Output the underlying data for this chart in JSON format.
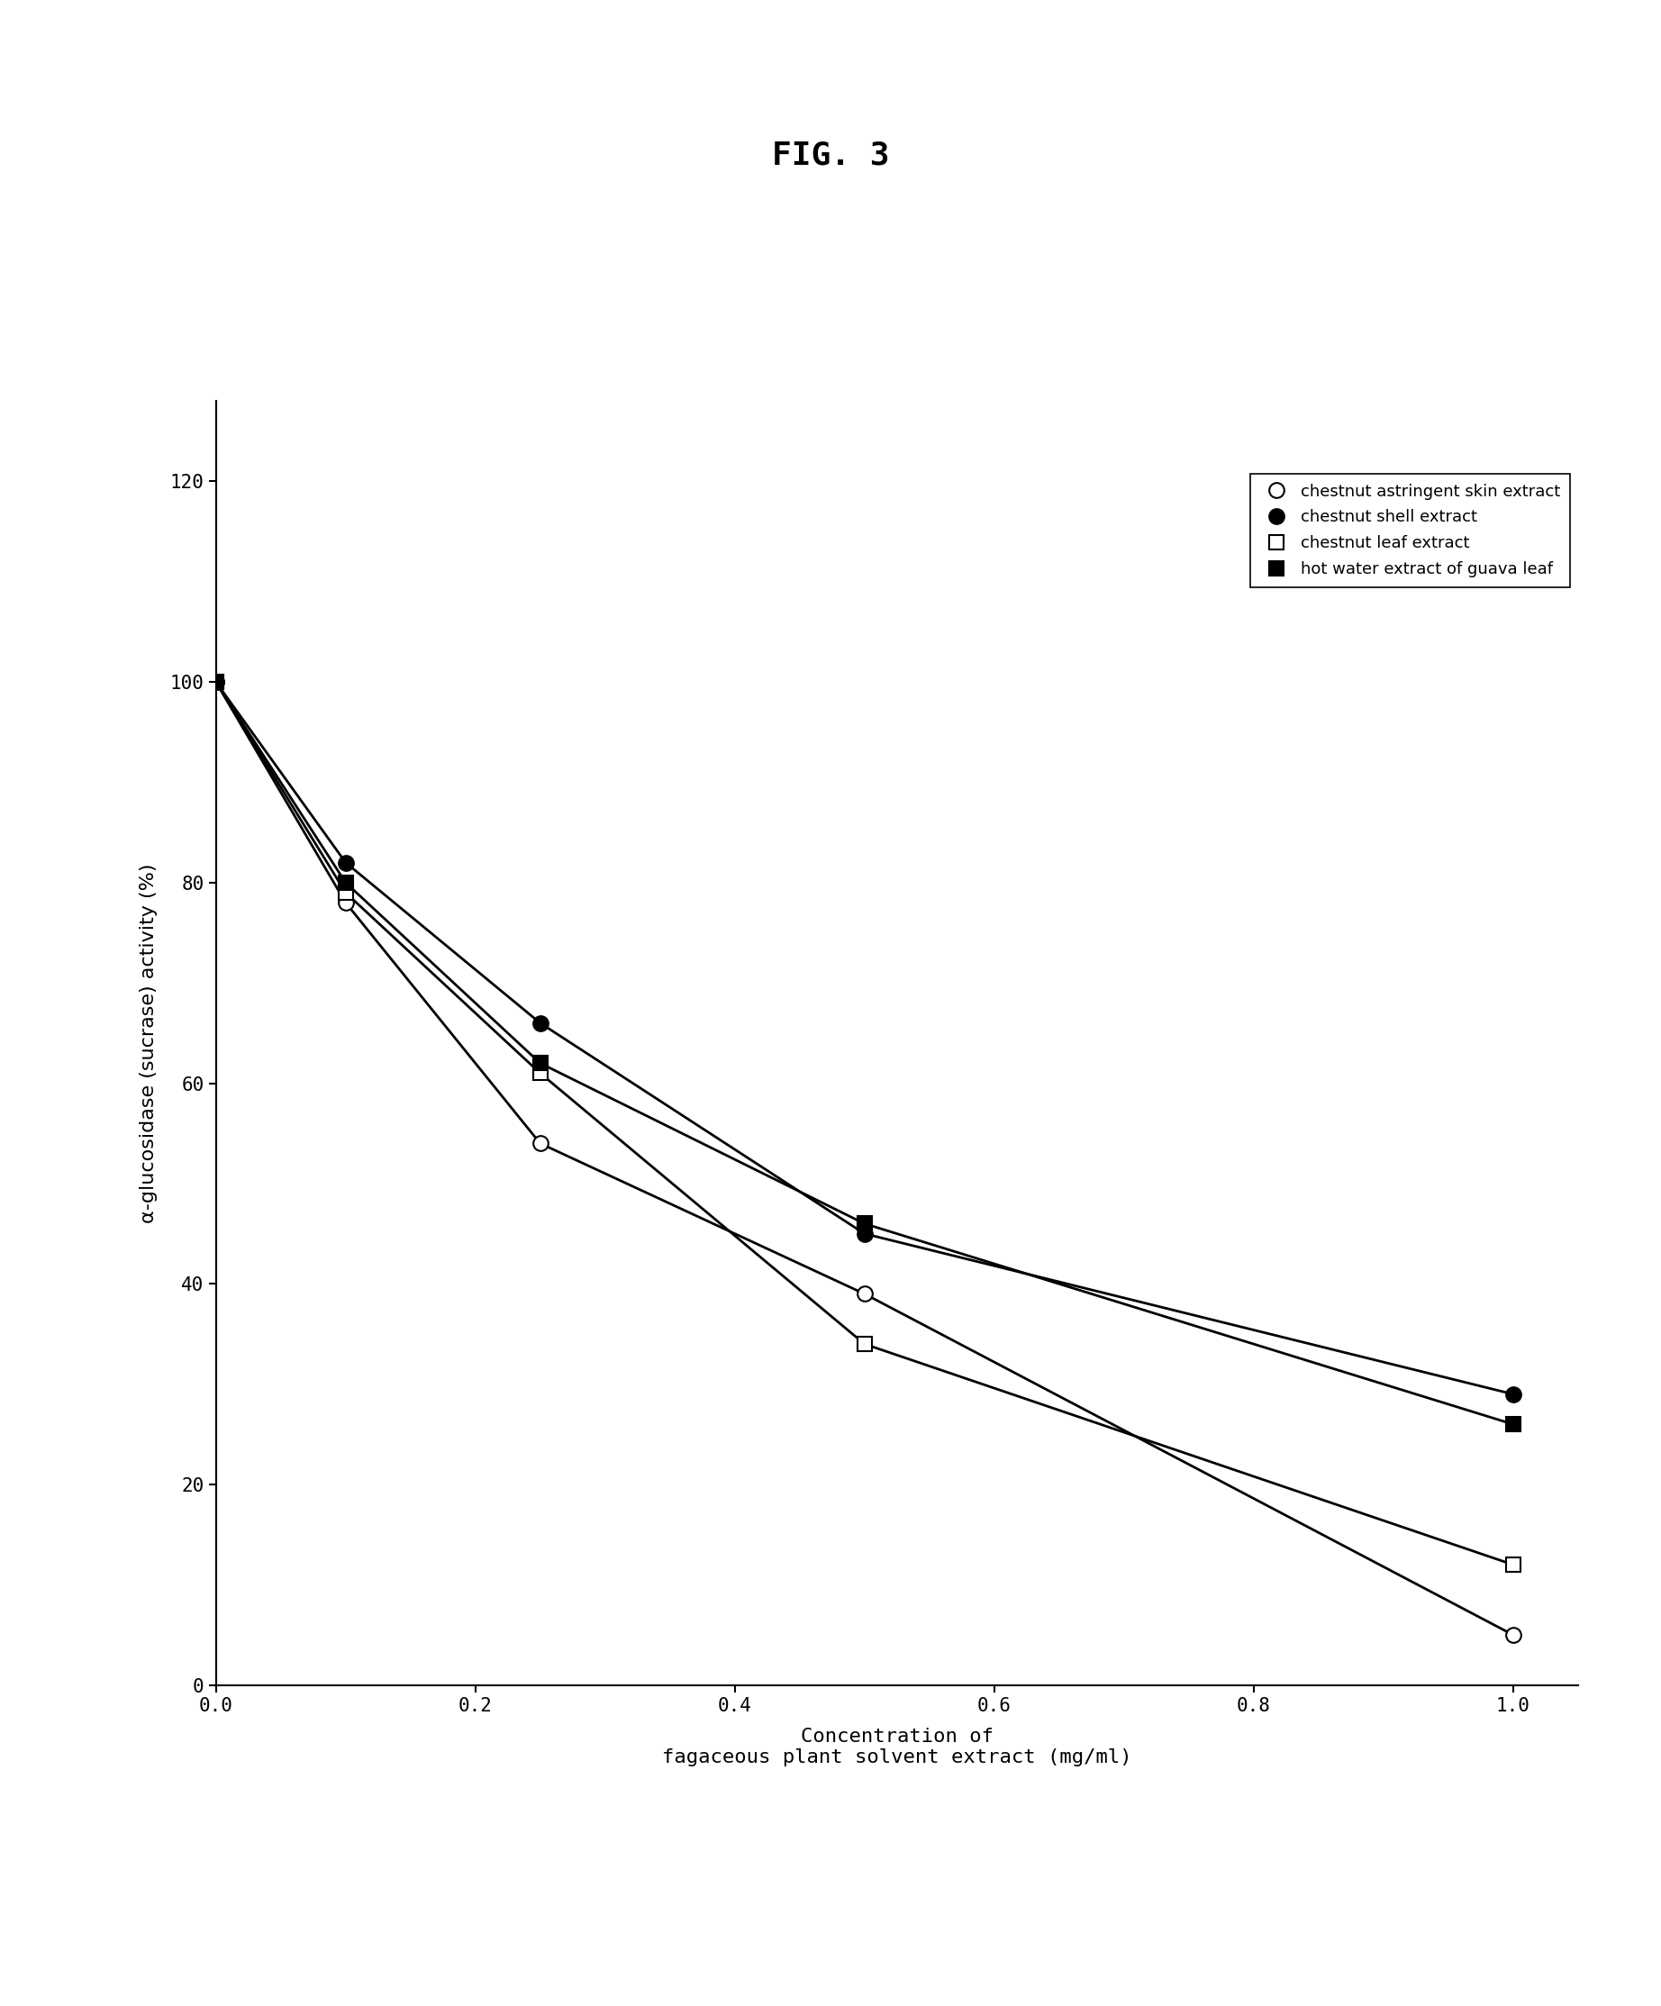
{
  "title": "FIG. 3",
  "xlabel_line1": "Concentration of",
  "xlabel_line2": "fagaceous plant solvent extract (mg/ml)",
  "ylabel": "α-glucosidase (sucrase) activity (%)",
  "xlim": [
    0,
    1.05
  ],
  "ylim": [
    0,
    128
  ],
  "xticks": [
    0,
    0.2,
    0.4,
    0.6,
    0.8,
    1.0
  ],
  "yticks": [
    0,
    20,
    40,
    60,
    80,
    100,
    120
  ],
  "series": [
    {
      "label": "chestnut astringent skin extract",
      "x": [
        0,
        0.1,
        0.25,
        0.5,
        1.0
      ],
      "y": [
        100,
        78,
        54,
        39,
        5
      ],
      "marker": "o",
      "markerfacecolor": "white",
      "markeredgecolor": "black",
      "color": "black",
      "markersize": 12
    },
    {
      "label": "chestnut shell extract",
      "x": [
        0,
        0.1,
        0.25,
        0.5,
        1.0
      ],
      "y": [
        100,
        82,
        66,
        45,
        29
      ],
      "marker": "o",
      "markerfacecolor": "black",
      "markeredgecolor": "black",
      "color": "black",
      "markersize": 12
    },
    {
      "label": "chestnut leaf extract",
      "x": [
        0,
        0.1,
        0.25,
        0.5,
        1.0
      ],
      "y": [
        100,
        79,
        61,
        34,
        12
      ],
      "marker": "s",
      "markerfacecolor": "white",
      "markeredgecolor": "black",
      "color": "black",
      "markersize": 12
    },
    {
      "label": "hot water extract of guava leaf",
      "x": [
        0,
        0.1,
        0.25,
        0.5,
        1.0
      ],
      "y": [
        100,
        80,
        62,
        46,
        26
      ],
      "marker": "s",
      "markerfacecolor": "black",
      "markeredgecolor": "black",
      "color": "black",
      "markersize": 12
    }
  ],
  "background_color": "#ffffff",
  "legend_fontsize": 13,
  "title_fontsize": 26,
  "axis_fontsize": 16,
  "tick_fontsize": 15
}
